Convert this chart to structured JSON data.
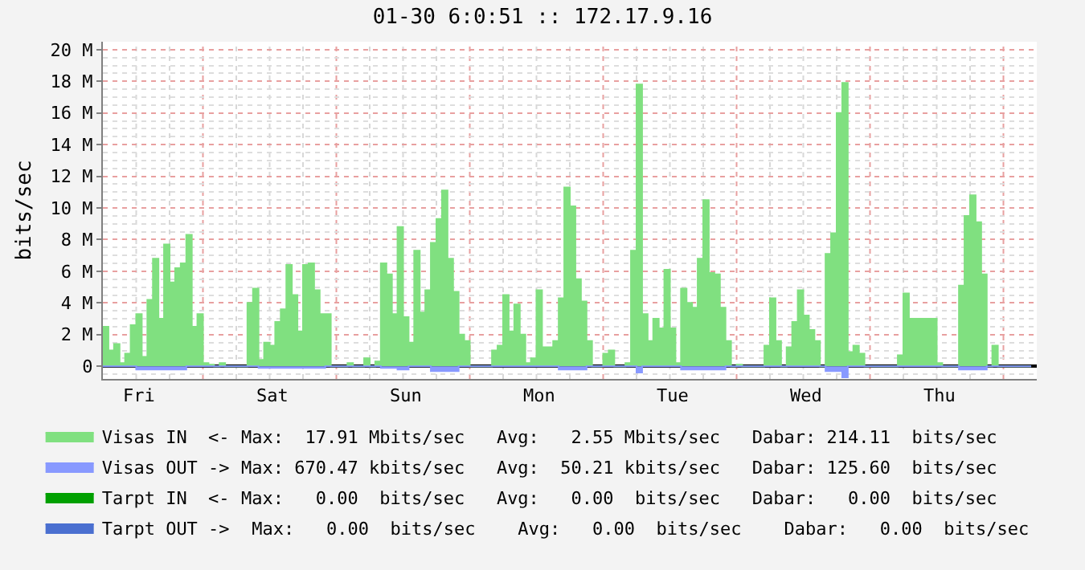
{
  "chart_data": {
    "type": "area",
    "title": "01-30 6:0:51 :: 172.17.9.16",
    "ylabel": "bits/sec",
    "categories": [
      null,
      null,
      null,
      null,
      null,
      null,
      "Fri",
      null,
      null,
      null,
      null,
      null,
      null,
      null,
      null,
      null,
      null,
      null,
      null,
      null,
      null,
      null,
      null,
      null,
      null,
      null,
      null,
      null,
      null,
      null,
      "Sat",
      null,
      null,
      null,
      null,
      null,
      null,
      null,
      null,
      null,
      null,
      null,
      null,
      null,
      null,
      null,
      null,
      null,
      null,
      null,
      null,
      null,
      null,
      null,
      "Sun",
      null,
      null,
      null,
      null,
      null,
      null,
      null,
      null,
      null,
      null,
      null,
      null,
      null,
      null,
      null,
      null,
      null,
      null,
      null,
      null,
      null,
      null,
      null,
      "Mon",
      null,
      null,
      null,
      null,
      null,
      null,
      null,
      null,
      null,
      null,
      null,
      null,
      null,
      null,
      null,
      null,
      null,
      null,
      null,
      null,
      null,
      null,
      null,
      "Tue",
      null,
      null,
      null,
      null,
      null,
      null,
      null,
      null,
      null,
      null,
      null,
      null,
      null,
      null,
      null,
      null,
      null,
      null,
      null,
      null,
      null,
      null,
      null,
      "Wed",
      null,
      null,
      null,
      null,
      null,
      null,
      null,
      null,
      null,
      null,
      null,
      null,
      null,
      null,
      null,
      null,
      null,
      null,
      null,
      null,
      null,
      null,
      null,
      "Thu",
      null,
      null,
      null,
      null,
      null,
      null,
      null,
      null,
      null,
      null,
      null,
      null,
      null,
      null,
      null,
      null,
      null
    ],
    "ylim": [
      -0.8,
      20.5
    ],
    "yticks": [
      0,
      {
        "value": 2,
        "label": "2 M"
      },
      {
        "value": 4,
        "label": "4 M"
      },
      {
        "value": 6,
        "label": "6 M"
      },
      {
        "value": 8,
        "label": "8 M"
      },
      {
        "value": 10,
        "label": "10 M"
      },
      {
        "value": 12,
        "label": "12 M"
      },
      {
        "value": 14,
        "label": "14 M"
      },
      {
        "value": 16,
        "label": "16 M"
      },
      {
        "value": 18,
        "label": "18 M"
      },
      {
        "value": 20,
        "label": "20 M"
      }
    ],
    "grid": true,
    "legend": "bottom left",
    "series": [
      {
        "name": "Visas IN  <-",
        "color": "#80e080",
        "values": [
          2.5,
          1.0,
          1.4,
          0.2,
          0.8,
          2.6,
          3.3,
          0.6,
          4.2,
          6.8,
          3.0,
          7.7,
          5.3,
          6.2,
          6.5,
          8.3,
          2.5,
          3.3,
          0.2,
          0.1,
          0,
          0.2,
          0,
          0,
          0,
          0,
          4.0,
          4.9,
          0.4,
          1.5,
          1.3,
          2.8,
          3.6,
          6.4,
          4.5,
          2.2,
          6.4,
          6.5,
          4.8,
          3.3,
          3.3,
          0,
          0,
          0,
          0.2,
          0,
          0,
          0.5,
          0,
          0.3,
          6.5,
          5.8,
          3.3,
          8.8,
          3.1,
          1.5,
          7.3,
          3.4,
          4.8,
          7.8,
          9.3,
          11.1,
          6.8,
          4.7,
          2.0,
          1.6,
          0,
          0,
          0,
          0,
          1.0,
          1.3,
          4.5,
          2.2,
          3.9,
          2.0,
          0.2,
          0.5,
          4.8,
          1.2,
          1.2,
          1.6,
          4.3,
          11.3,
          10.1,
          5.5,
          4.1,
          1.6,
          0,
          0,
          0.8,
          1.0,
          0,
          0,
          0.2,
          7.3,
          17.8,
          3.3,
          1.6,
          3.0,
          2.4,
          6.1,
          2.4,
          0.2,
          4.9,
          4.0,
          3.7,
          6.8,
          10.5,
          5.9,
          5.8,
          3.7,
          1.6,
          0,
          0.1,
          0,
          0,
          0,
          0,
          1.3,
          4.3,
          1.6,
          0,
          1.2,
          2.8,
          4.8,
          3.2,
          2.3,
          1.6,
          0,
          7.1,
          8.4,
          16.0,
          17.9,
          0.9,
          1.3,
          0.8,
          0,
          0,
          0,
          0,
          0,
          0,
          0.7,
          4.6,
          3.0,
          3.0,
          3.0,
          3.0,
          3.0,
          0.2,
          0,
          0,
          0,
          5.1,
          9.5,
          10.8,
          9.1,
          5.8,
          0,
          1.3,
          0,
          0,
          0,
          0,
          0,
          0,
          0
        ]
      },
      {
        "name": "Visas OUT ->",
        "color": "#8899ff",
        "values": [
          0,
          0,
          0,
          0,
          0,
          0,
          -0.2,
          -0.2,
          -0.2,
          -0.2,
          -0.2,
          -0.2,
          -0.2,
          -0.2,
          -0.2,
          0,
          0,
          0,
          0,
          0,
          0,
          0,
          0,
          0,
          0,
          0,
          0,
          0,
          -0.1,
          -0.1,
          -0.1,
          -0.1,
          -0.1,
          -0.1,
          -0.1,
          -0.1,
          -0.1,
          -0.1,
          -0.1,
          -0.1,
          0,
          0,
          0,
          0,
          0,
          0,
          0,
          0,
          0,
          0,
          -0.1,
          -0.1,
          -0.1,
          -0.2,
          -0.2,
          0,
          0,
          0,
          0,
          -0.3,
          -0.3,
          -0.3,
          -0.3,
          -0.3,
          0,
          0,
          0,
          0,
          0,
          0,
          0,
          0,
          0,
          0,
          0,
          0,
          0,
          0,
          0,
          0,
          0,
          0,
          -0.2,
          -0.2,
          -0.2,
          -0.2,
          -0.2,
          0,
          0,
          0,
          0,
          0,
          0,
          0,
          0,
          0,
          -0.4,
          0,
          0,
          0,
          0,
          0,
          0,
          0,
          -0.2,
          -0.2,
          -0.2,
          -0.2,
          -0.2,
          -0.2,
          -0.2,
          -0.2,
          0,
          0,
          0,
          0,
          0,
          0,
          0,
          0,
          0,
          0,
          0,
          0,
          0,
          0,
          0,
          0,
          0,
          0,
          -0.3,
          -0.3,
          -0.3,
          -0.7,
          0,
          0,
          0,
          0,
          0,
          0,
          0,
          0,
          0,
          0,
          0,
          0,
          0,
          0,
          0,
          0,
          0,
          0,
          0,
          0,
          -0.2,
          -0.2,
          -0.2,
          -0.2,
          -0.2,
          0,
          0,
          0,
          0,
          0,
          0,
          0,
          0,
          0
        ]
      },
      {
        "name": "Tarpt IN  <-",
        "color": "#00a000",
        "values": [
          null,
          null,
          null,
          null,
          null,
          null,
          null,
          null,
          null,
          null,
          null,
          null,
          null,
          null,
          null,
          null,
          null,
          null,
          null,
          null,
          null,
          null,
          null,
          null,
          null,
          null,
          null,
          null,
          null,
          null,
          null,
          null,
          null,
          null,
          null,
          null,
          null,
          null,
          null,
          null,
          null,
          null,
          null,
          null,
          null,
          null,
          null,
          null,
          null,
          null,
          null,
          null,
          null,
          null,
          null,
          null,
          null,
          null,
          null,
          null,
          null,
          null,
          null,
          null,
          null,
          null,
          null,
          null,
          null,
          null,
          null,
          null,
          null,
          null,
          null,
          null,
          null,
          null,
          null,
          null,
          null,
          null,
          null,
          null,
          null,
          null,
          null,
          null,
          null,
          null,
          null,
          null,
          null,
          null,
          null,
          null,
          null,
          null,
          null,
          null,
          null,
          null,
          null,
          null,
          null,
          null,
          null,
          null,
          null,
          null,
          null,
          null,
          null,
          null,
          null,
          null,
          null,
          null,
          null,
          null,
          null,
          null,
          null,
          null,
          null,
          null,
          null,
          null,
          null,
          null,
          null,
          null,
          null,
          null,
          null,
          null,
          null,
          null,
          null,
          null,
          null,
          null,
          null,
          null,
          null,
          null,
          null,
          null,
          null,
          null,
          null,
          null,
          null,
          null,
          null,
          null,
          null,
          null,
          null,
          null,
          null,
          null,
          null,
          null,
          null,
          null,
          null,
          null
        ]
      },
      {
        "name": "Tarpt OUT ->",
        "color": "#4a6fd0",
        "values": [
          null,
          null,
          null,
          null,
          null,
          null,
          null,
          null,
          null,
          null,
          null,
          null,
          null,
          null,
          null,
          null,
          null,
          null,
          null,
          null,
          null,
          null,
          null,
          null,
          null,
          null,
          null,
          null,
          null,
          null,
          null,
          null,
          null,
          null,
          null,
          null,
          null,
          null,
          null,
          null,
          null,
          null,
          null,
          null,
          null,
          null,
          null,
          null,
          null,
          null,
          null,
          null,
          null,
          null,
          null,
          null,
          null,
          null,
          null,
          null,
          null,
          null,
          null,
          null,
          null,
          null,
          null,
          null,
          null,
          null,
          null,
          null,
          null,
          null,
          null,
          null,
          null,
          null,
          null,
          null,
          null,
          null,
          null,
          null,
          null,
          null,
          null,
          null,
          null,
          null,
          null,
          null,
          null,
          null,
          null,
          null,
          null,
          null,
          null,
          null,
          null,
          null,
          null,
          null,
          null,
          null,
          null,
          null,
          null,
          null,
          null,
          null,
          null,
          null,
          null,
          null,
          null,
          null,
          null,
          null,
          null,
          null,
          null,
          null,
          null,
          null,
          null,
          null,
          null,
          null,
          null,
          null,
          null,
          null,
          null,
          null,
          null,
          null,
          null,
          null,
          null,
          null,
          null,
          null,
          null,
          null,
          null,
          null,
          null,
          null,
          null,
          null,
          null,
          null,
          null,
          null,
          null,
          null,
          null,
          null,
          null,
          null,
          null,
          null,
          null,
          null,
          null,
          null
        ]
      }
    ],
    "annotations": [
      "Max:  17.91 Mbits/sec   Avg:   2.55 Mbits/sec   Dabar: 214.11  bits/sec",
      "Max: 670.47 kbits/sec   Avg:  50.21 kbits/sec   Dabar: 125.60  bits/sec",
      "Max:   0.00  bits/sec   Avg:   0.00  bits/sec   Dabar:   0.00  bits/sec",
      " Max:   0.00  bits/sec    Avg:   0.00  bits/sec    Dabar:   0.00  bits/sec"
    ]
  }
}
